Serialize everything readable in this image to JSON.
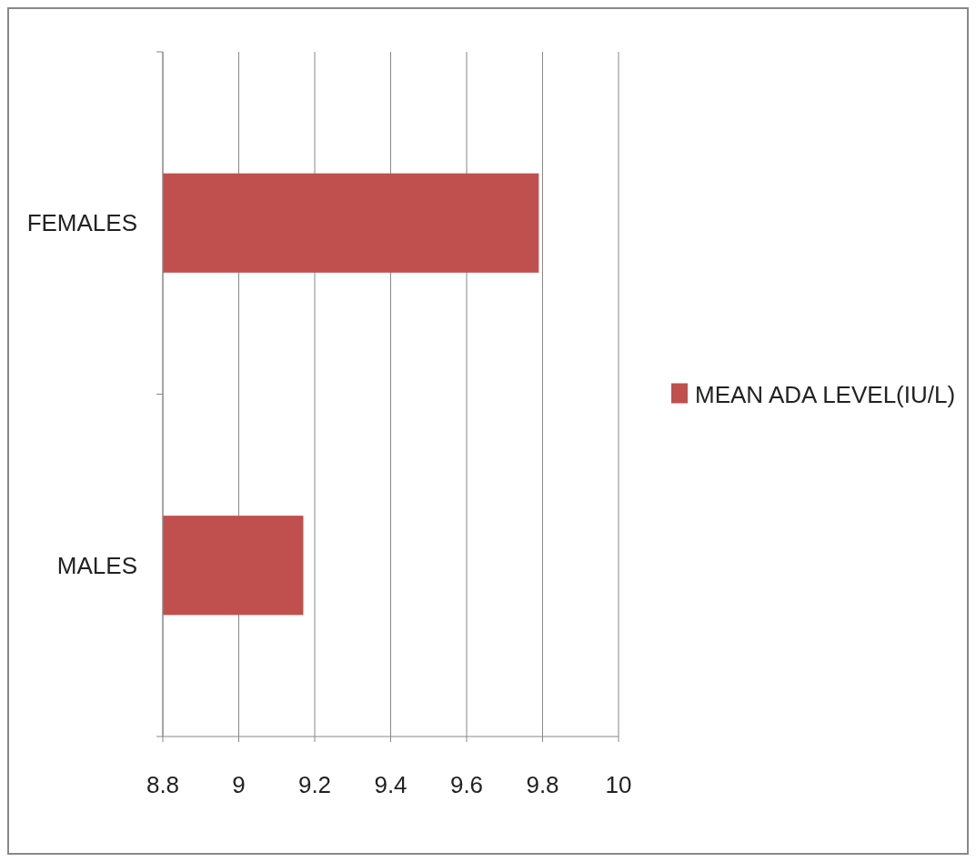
{
  "chart_data": {
    "type": "bar",
    "orientation": "horizontal",
    "categories": [
      "FEMALES",
      "MALES"
    ],
    "series": [
      {
        "name": "MEAN ADA LEVEL(IU/L)",
        "color": "#c0504d",
        "values": [
          9.79,
          9.17
        ]
      }
    ],
    "xlim": [
      8.8,
      10
    ],
    "xticks": [
      8.8,
      9,
      9.2,
      9.4,
      9.6,
      9.8,
      10
    ],
    "grid": "x",
    "legend": "right"
  }
}
